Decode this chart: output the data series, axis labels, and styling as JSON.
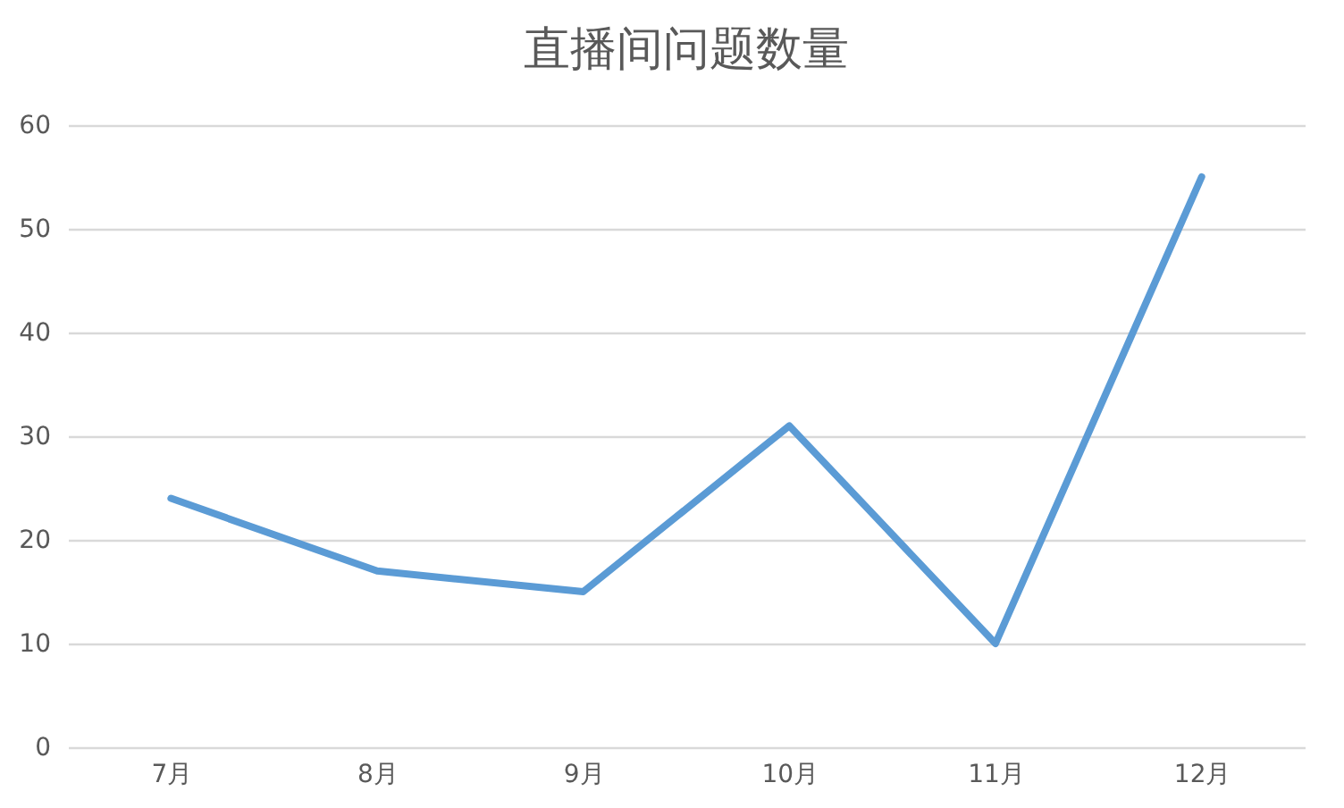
{
  "chart_data": {
    "type": "line",
    "title": "直播间问题数量",
    "categories": [
      "7月",
      "8月",
      "9月",
      "10月",
      "11月",
      "12月"
    ],
    "series": [
      {
        "color": "#5b9bd5",
        "values": [
          24,
          17,
          15,
          31,
          10,
          55
        ]
      }
    ],
    "ylim": [
      0,
      60
    ],
    "yticks": [
      0,
      10,
      20,
      30,
      40,
      50,
      60
    ],
    "grid": "y",
    "marker": "none",
    "line_style": "solid"
  }
}
